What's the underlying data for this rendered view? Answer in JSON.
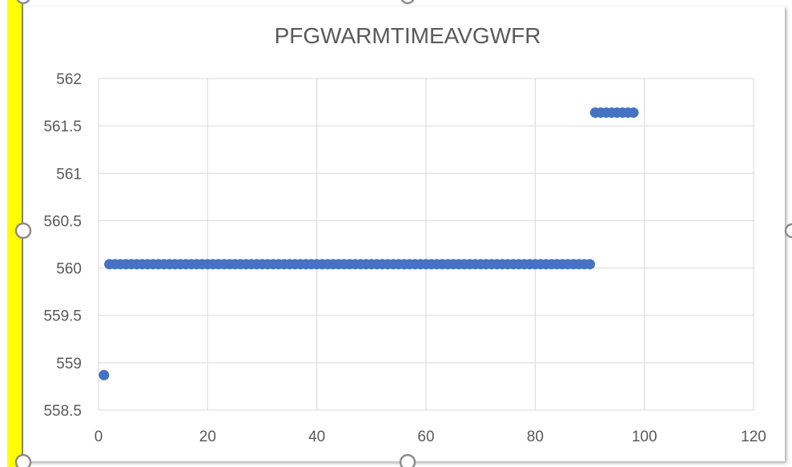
{
  "chart_data": {
    "type": "scatter",
    "title": "PFGWARMTIMEAVGWFR",
    "xlabel": "",
    "ylabel": "",
    "xlim": [
      0,
      120
    ],
    "ylim": [
      558.5,
      562
    ],
    "xticks": [
      0,
      20,
      40,
      60,
      80,
      100,
      120
    ],
    "yticks": [
      558.5,
      559,
      559.5,
      560,
      560.5,
      561,
      561.5,
      562
    ],
    "xtick_labels": [
      "0",
      "20",
      "40",
      "60",
      "80",
      "100",
      "120"
    ],
    "ytick_labels": [
      "558.5",
      "559",
      "559.5",
      "560",
      "560.5",
      "561",
      "561.5",
      "562"
    ],
    "grid": true,
    "legend": "none",
    "marker_color": "#4472c4",
    "series": [
      {
        "segments": [
          {
            "x_from": 1,
            "x_to": 1,
            "y": 558.87
          },
          {
            "x_from": 2,
            "x_to": 90,
            "y": 560.04
          },
          {
            "x_from": 91,
            "x_to": 98,
            "y": 561.64
          }
        ]
      }
    ]
  },
  "colors": {
    "highlight_bar": "#ffff00",
    "grid": "#d9d9d9",
    "text": "#595959"
  }
}
